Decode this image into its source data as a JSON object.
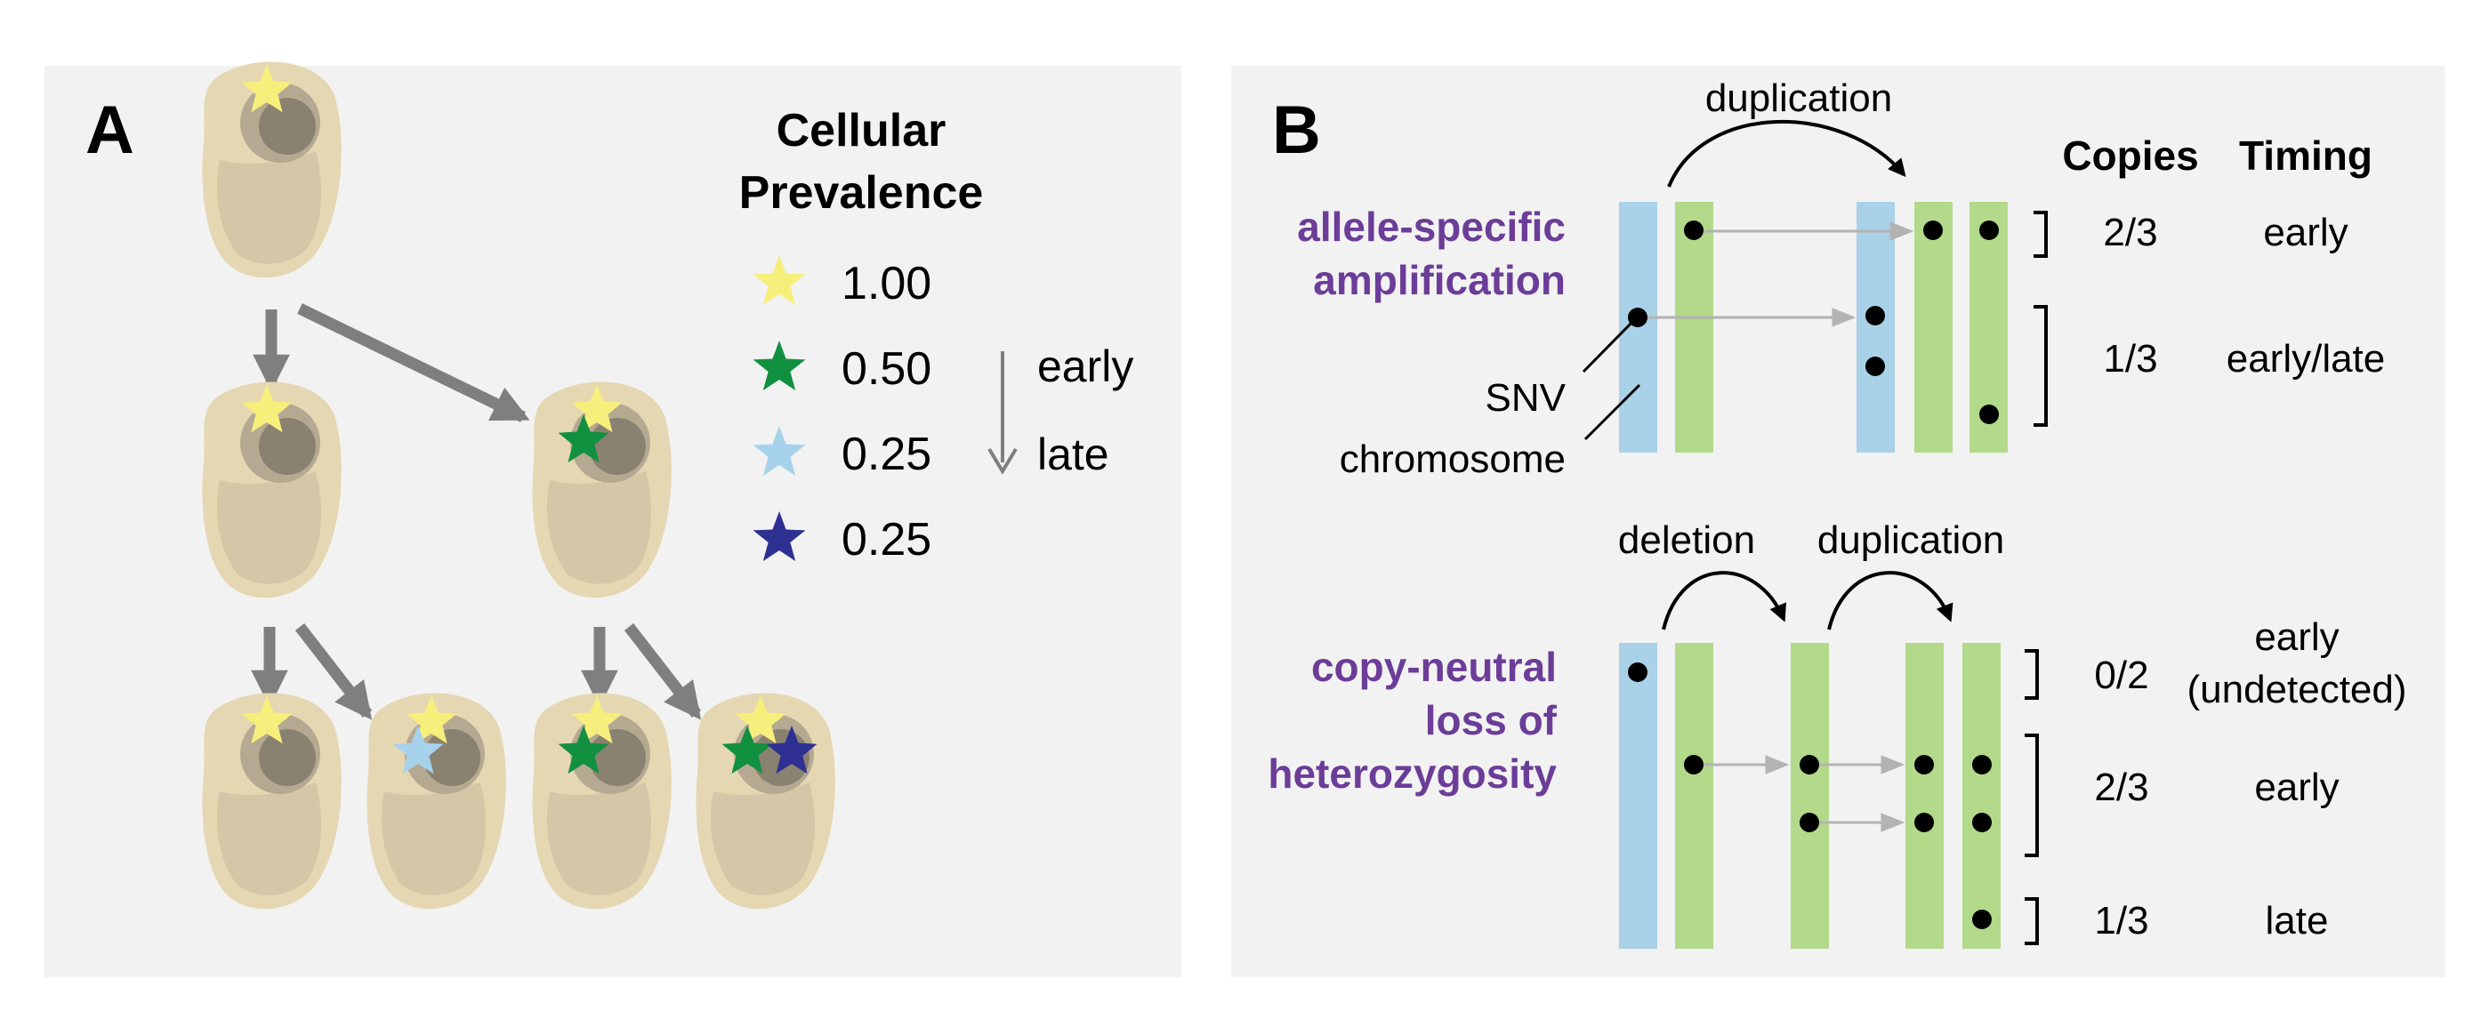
{
  "colors": {
    "panel_bg": "#f2f2f2",
    "cell_body": "#e6d7b3",
    "cell_inner": "#d4c6a6",
    "nucleus_outer": "#b5a992",
    "nucleus_inner": "#8a8270",
    "arrow_gray": "#7f7f7f",
    "light_arrow": "#b3b3b3",
    "chrom_blue": "#a9d1e7",
    "chrom_green": "#b3d98a",
    "star_yellow": "#f6ef7c",
    "star_green": "#119040",
    "star_lightblue": "#a7d2ec",
    "star_navy": "#2e3191",
    "label_purple": "#6b3d98"
  },
  "panelA": {
    "letter": "A",
    "legend_title_line1": "Cellular",
    "legend_title_line2": "Prevalence",
    "legend": [
      {
        "value": "1.00",
        "color": "#f6ef7c"
      },
      {
        "value": "0.50",
        "color": "#119040"
      },
      {
        "value": "0.25",
        "color": "#a7d2ec"
      },
      {
        "value": "0.25",
        "color": "#2e3191"
      }
    ],
    "time_early": "early",
    "time_late": "late",
    "tree_levels": 3,
    "cells": [
      {
        "stars": [
          "star_yellow"
        ]
      },
      {
        "stars": [
          "star_yellow"
        ]
      },
      {
        "stars": [
          "star_yellow",
          "star_green"
        ]
      },
      {
        "stars": [
          "star_yellow"
        ]
      },
      {
        "stars": [
          "star_yellow",
          "star_lightblue"
        ]
      },
      {
        "stars": [
          "star_yellow",
          "star_green"
        ]
      },
      {
        "stars": [
          "star_yellow",
          "star_green",
          "star_navy"
        ]
      }
    ]
  },
  "panelB": {
    "letter": "B",
    "header_copies": "Copies",
    "header_timing": "Timing",
    "top": {
      "label_line1": "allele-specific",
      "label_line2": "amplification",
      "arrow_label": "duplication",
      "snv_label": "SNV",
      "chromosome_label": "chromosome",
      "rows": [
        {
          "copies": "2/3",
          "timing": "early"
        },
        {
          "copies": "1/3",
          "timing": "early/late"
        }
      ]
    },
    "bottom": {
      "label_line1": "copy-neutral",
      "label_line2": "loss of",
      "label_line3": "heterozygosity",
      "arrow_label_1": "deletion",
      "arrow_label_2": "duplication",
      "rows": [
        {
          "copies": "0/2",
          "timing_line1": "early",
          "timing_line2": "(undetected)"
        },
        {
          "copies": "2/3",
          "timing_line1": "early"
        },
        {
          "copies": "1/3",
          "timing_line1": "late"
        }
      ]
    }
  }
}
